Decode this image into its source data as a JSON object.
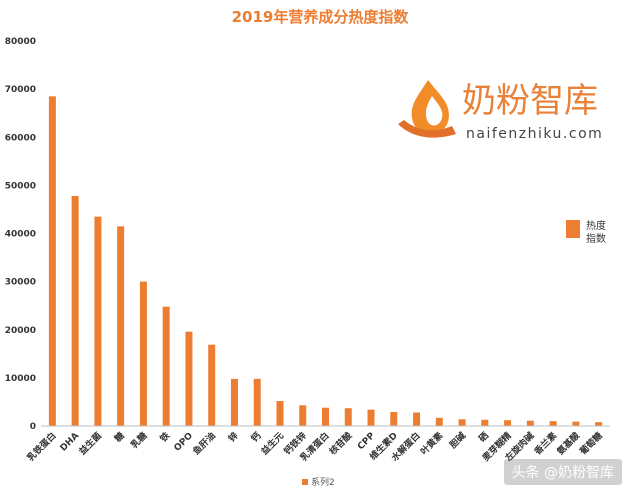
{
  "chart_data": {
    "type": "bar",
    "title": "2019年营养成分热度指数",
    "categories": [
      "乳铁蛋白",
      "DHA",
      "益生菌",
      "糖",
      "乳糖",
      "铁",
      "OPO",
      "鱼肝油",
      "锌",
      "钙",
      "益生元",
      "钙铁锌",
      "乳清蛋白",
      "核苷酸",
      "CPP",
      "维生素D",
      "水解蛋白",
      "叶黄素",
      "胆碱",
      "硒",
      "麦芽糊精",
      "左旋肉碱",
      "香兰素",
      "氨基酸",
      "葡萄糖"
    ],
    "series": [
      {
        "name": "热度指数",
        "values": [
          68500,
          47800,
          43500,
          41500,
          30000,
          24800,
          19600,
          16900,
          9800,
          9800,
          5200,
          4300,
          3800,
          3700,
          3400,
          2900,
          2800,
          1700,
          1400,
          1300,
          1200,
          1100,
          1000,
          900,
          800
        ]
      }
    ],
    "ylim": [
      0,
      80000
    ],
    "yticks": [
      "0",
      "10000",
      "20000",
      "30000",
      "40000",
      "50000",
      "60000",
      "70000",
      "80000"
    ],
    "legend_position": "right",
    "bottom_legend_label": "系列2",
    "grid": false,
    "colors": {
      "bar": "#ED7D31",
      "title": "#ED7D31"
    }
  },
  "logo": {
    "cn": "奶粉智库",
    "en": "naifenzhiku.com",
    "icon": "hand-flame-logo-icon"
  },
  "watermark": "头条 @奶粉智库"
}
